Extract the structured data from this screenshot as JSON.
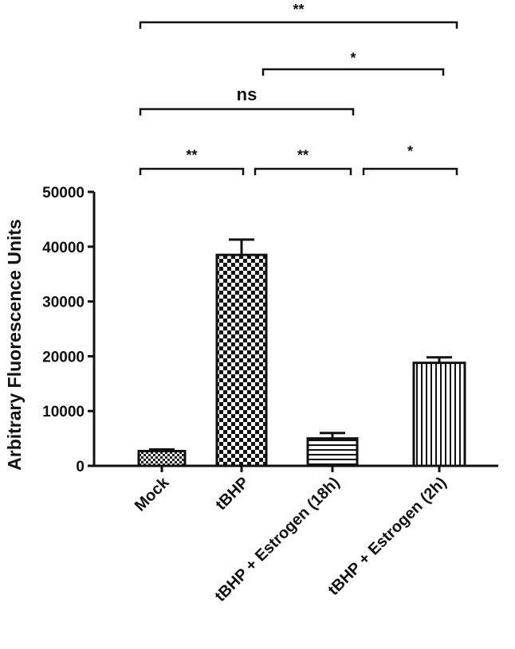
{
  "chart_data": {
    "type": "bar",
    "ylabel": "Arbitrary Fluorescence Units",
    "xlabel": "",
    "title": "",
    "ylim": [
      0,
      50000
    ],
    "yticks": [
      0,
      10000,
      20000,
      30000,
      40000,
      50000
    ],
    "ytick_labels": [
      "0",
      "10000",
      "20000",
      "30000",
      "40000",
      "50000"
    ],
    "categories": [
      "Mock",
      "tBHP",
      "tBHP + Estrogen (18h)",
      "tBHP + Estrogen (2h)"
    ],
    "values": [
      2700,
      38500,
      5000,
      18800
    ],
    "errors": [
      300,
      2800,
      1000,
      1000
    ],
    "patterns": [
      "fine-checker",
      "checker",
      "horizontal-lines",
      "vertical-lines"
    ],
    "grid": false,
    "significance": [
      {
        "from": 0,
        "to": 1,
        "label": "**"
      },
      {
        "from": 1,
        "to": 2,
        "label": "**"
      },
      {
        "from": 2,
        "to": 3,
        "label": "*"
      },
      {
        "from": 0,
        "to": 2,
        "label": "ns"
      },
      {
        "from": 1,
        "to": 3,
        "label": "*"
      },
      {
        "from": 0,
        "to": 3,
        "label": "**"
      }
    ]
  }
}
